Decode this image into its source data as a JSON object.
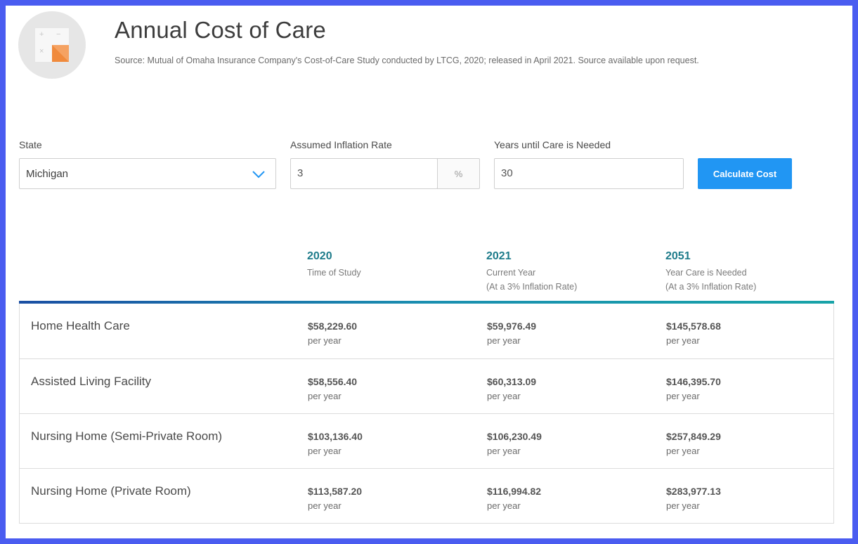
{
  "header": {
    "title": "Annual Cost of Care",
    "source": "Source: Mutual of Omaha Insurance Company's Cost-of-Care Study conducted by LTCG, 2020; released in April 2021. Source available upon request.",
    "logo_icon": "calculator-icon"
  },
  "form": {
    "state": {
      "label": "State",
      "value": "Michigan"
    },
    "inflation": {
      "label": "Assumed Inflation Rate",
      "value": "3",
      "unit": "%"
    },
    "years": {
      "label": "Years until Care is Needed",
      "value": "30"
    },
    "calculate_label": "Calculate Cost"
  },
  "table": {
    "columns": [
      {
        "year": "2020",
        "line1": "Time of Study",
        "line2": ""
      },
      {
        "year": "2021",
        "line1": "Current Year",
        "line2": "(At a 3% Inflation Rate)"
      },
      {
        "year": "2051",
        "line1": "Year Care is Needed",
        "line2": "(At a 3% Inflation Rate)"
      }
    ],
    "unit_label": "per year",
    "rows": [
      {
        "label": "Home Health Care",
        "values": [
          "$58,229.60",
          "$59,976.49",
          "$145,578.68"
        ]
      },
      {
        "label": "Assisted Living Facility",
        "values": [
          "$58,556.40",
          "$60,313.09",
          "$146,395.70"
        ]
      },
      {
        "label": "Nursing Home (Semi-Private Room)",
        "values": [
          "$103,136.40",
          "$106,230.49",
          "$257,849.29"
        ]
      },
      {
        "label": "Nursing Home (Private Room)",
        "values": [
          "$113,587.20",
          "$116,994.82",
          "$283,977.13"
        ]
      }
    ]
  },
  "colors": {
    "frame_border": "#4a5cf0",
    "accent_button": "#2196f3",
    "year_heading": "#1d7b8a",
    "logo_orange": "#f08a3c"
  }
}
